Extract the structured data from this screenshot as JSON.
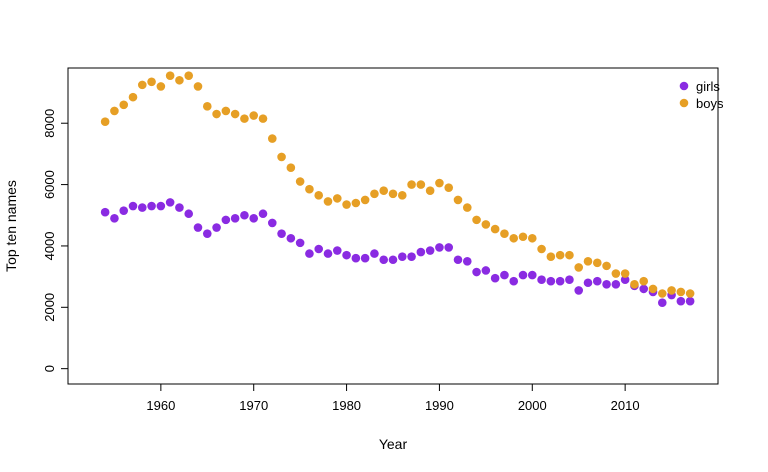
{
  "chart_data": {
    "type": "scatter",
    "title": "",
    "xlabel": "Year",
    "ylabel": "Top ten names",
    "xlim": [
      1950,
      2020
    ],
    "ylim": [
      -500,
      9800
    ],
    "x_ticks": [
      1960,
      1970,
      1980,
      1990,
      2000,
      2010
    ],
    "y_ticks": [
      0,
      2000,
      4000,
      6000,
      8000
    ],
    "legend_position": "top-right",
    "grid": false,
    "x": [
      1954,
      1955,
      1956,
      1957,
      1958,
      1959,
      1960,
      1961,
      1962,
      1963,
      1964,
      1965,
      1966,
      1967,
      1968,
      1969,
      1970,
      1971,
      1972,
      1973,
      1974,
      1975,
      1976,
      1977,
      1978,
      1979,
      1980,
      1981,
      1982,
      1983,
      1984,
      1985,
      1986,
      1987,
      1988,
      1989,
      1990,
      1991,
      1992,
      1993,
      1994,
      1995,
      1996,
      1997,
      1998,
      1999,
      2000,
      2001,
      2002,
      2003,
      2004,
      2005,
      2006,
      2007,
      2008,
      2009,
      2010,
      2011,
      2012,
      2013,
      2014,
      2015,
      2016,
      2017
    ],
    "series": [
      {
        "name": "girls",
        "color": "#8A2BE2",
        "values": [
          5100,
          4900,
          5150,
          5300,
          5250,
          5300,
          5300,
          5420,
          5250,
          5050,
          4600,
          4400,
          4600,
          4850,
          4900,
          5000,
          4900,
          5050,
          4750,
          4400,
          4250,
          4100,
          3750,
          3900,
          3750,
          3850,
          3700,
          3600,
          3600,
          3750,
          3550,
          3550,
          3650,
          3650,
          3800,
          3850,
          3950,
          3950,
          3550,
          3500,
          3150,
          3200,
          2950,
          3050,
          2850,
          3050,
          3050,
          2900,
          2850,
          2850,
          2900,
          2550,
          2800,
          2850,
          2750,
          2750,
          2900,
          2700,
          2600,
          2500,
          2150,
          2400,
          2200,
          2200
        ]
      },
      {
        "name": "boys",
        "color": "#E69F25",
        "values": [
          8050,
          8400,
          8600,
          8850,
          9250,
          9350,
          9200,
          9550,
          9400,
          9550,
          9200,
          8550,
          8300,
          8400,
          8300,
          8150,
          8250,
          8150,
          7500,
          6900,
          6550,
          6100,
          5850,
          5650,
          5450,
          5550,
          5350,
          5400,
          5500,
          5700,
          5800,
          5700,
          5650,
          6000,
          6000,
          5800,
          6050,
          5900,
          5500,
          5250,
          4850,
          4700,
          4550,
          4400,
          4250,
          4300,
          4250,
          3900,
          3650,
          3700,
          3700,
          3300,
          3500,
          3450,
          3350,
          3100,
          3100,
          2750,
          2850,
          2600,
          2450,
          2550,
          2500,
          2450
        ]
      }
    ]
  }
}
